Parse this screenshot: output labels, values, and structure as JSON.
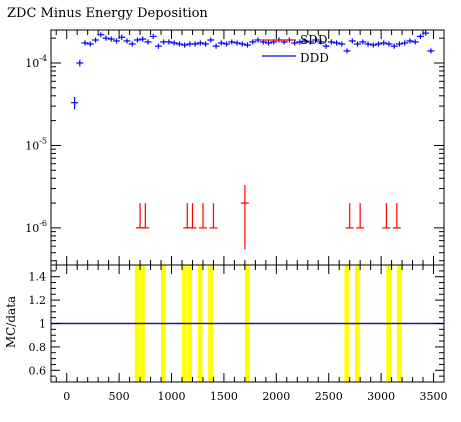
{
  "chart_data": [
    {
      "type": "scatter",
      "title": "ZDC Minus Energy Deposition",
      "yscale": "log",
      "xlim": [
        -150,
        3600
      ],
      "ylim_exp": [
        -6.45,
        -3.6
      ],
      "ytick_labels": [
        "10^-6",
        "10^-5",
        "10^-4"
      ],
      "ytick_values": [
        1e-06,
        1e-05,
        0.0001
      ],
      "legend": {
        "position": "top-right",
        "entries": [
          "SDD",
          "DDD"
        ]
      },
      "series": [
        {
          "name": "SDD",
          "color": "#ff0000",
          "x": [
            700,
            750,
            1150,
            1200,
            1300,
            1400,
            1700,
            2700,
            2800,
            3050,
            3150
          ],
          "y": [
            1e-06,
            1e-06,
            1e-06,
            1e-06,
            1e-06,
            1e-06,
            2e-06,
            1e-06,
            1e-06,
            1e-06,
            1e-06
          ],
          "yerr_hi": [
            2e-06,
            2e-06,
            2e-06,
            2e-06,
            2e-06,
            2e-06,
            3.3e-06,
            2e-06,
            2e-06,
            2e-06,
            2e-06
          ],
          "yerr_lo": [
            1e-06,
            1e-06,
            1e-06,
            1e-06,
            1e-06,
            1e-06,
            5.5e-07,
            1e-06,
            1e-06,
            1e-06,
            1e-06
          ]
        },
        {
          "name": "DDD",
          "color": "#0000ff",
          "x": [
            75,
            125,
            175,
            225,
            275,
            325,
            375,
            425,
            475,
            525,
            575,
            625,
            675,
            725,
            775,
            825,
            875,
            925,
            975,
            1025,
            1075,
            1125,
            1175,
            1225,
            1275,
            1325,
            1375,
            1425,
            1475,
            1525,
            1575,
            1625,
            1675,
            1725,
            1775,
            1825,
            1875,
            1925,
            1975,
            2025,
            2075,
            2125,
            2175,
            2225,
            2275,
            2325,
            2375,
            2425,
            2475,
            2525,
            2575,
            2625,
            2675,
            2725,
            2775,
            2825,
            2875,
            2925,
            2975,
            3025,
            3075,
            3125,
            3175,
            3225,
            3275,
            3325,
            3375,
            3425,
            3475
          ],
          "y": [
            3.3e-05,
            0.0001,
            0.000175,
            0.00017,
            0.00019,
            0.00022,
            0.0002,
            0.000195,
            0.000185,
            0.000205,
            0.000185,
            0.00017,
            0.00019,
            0.000195,
            0.00018,
            0.00021,
            0.00016,
            0.00018,
            0.00018,
            0.000175,
            0.00017,
            0.000165,
            0.00017,
            0.00017,
            0.000175,
            0.00017,
            0.00019,
            0.00016,
            0.000175,
            0.00017,
            0.00018,
            0.000175,
            0.00017,
            0.000165,
            0.00018,
            0.00019,
            0.00018,
            0.000175,
            0.00018,
            0.00019,
            0.00018,
            0.00019,
            0.000175,
            0.00018,
            0.000185,
            0.00018,
            0.00019,
            0.00018,
            0.00016,
            0.00018,
            0.000175,
            0.00017,
            0.00014,
            0.000185,
            0.00017,
            0.00018,
            0.00017,
            0.000165,
            0.00017,
            0.000175,
            0.00017,
            0.00016,
            0.00017,
            0.000175,
            0.000185,
            0.00018,
            0.00021,
            0.00023,
            0.00014
          ],
          "yerr_frac": [
            0.13,
            0.05,
            0.03,
            0.03,
            0.03,
            0.03,
            0.03,
            0.03,
            0.03,
            0.03,
            0.03,
            0.03,
            0.03,
            0.03,
            0.03,
            0.03,
            0.03,
            0.03,
            0.03,
            0.03,
            0.03,
            0.03,
            0.03,
            0.03,
            0.03,
            0.03,
            0.03,
            0.03,
            0.03,
            0.03,
            0.03,
            0.03,
            0.03,
            0.03,
            0.03,
            0.03,
            0.03,
            0.03,
            0.03,
            0.03,
            0.03,
            0.03,
            0.03,
            0.03,
            0.03,
            0.03,
            0.03,
            0.03,
            0.03,
            0.03,
            0.03,
            0.03,
            0.03,
            0.03,
            0.03,
            0.03,
            0.03,
            0.03,
            0.03,
            0.03,
            0.03,
            0.03,
            0.03,
            0.03,
            0.03,
            0.03,
            0.03,
            0.03,
            0.03
          ]
        }
      ]
    },
    {
      "type": "ratio",
      "ylabel": "MC/data",
      "ylim": [
        0.5,
        1.5
      ],
      "yticks": [
        0.6,
        0.8,
        1,
        1.2,
        1.4
      ],
      "xticks": [
        0,
        500,
        1000,
        1500,
        2000,
        2500,
        3000,
        3500
      ],
      "reference": {
        "value": 1,
        "color": "#1a1a8c"
      },
      "bands": {
        "color": "#ffff00",
        "ranges": [
          [
            650,
            700
          ],
          [
            700,
            750
          ],
          [
            900,
            950
          ],
          [
            1100,
            1150
          ],
          [
            1150,
            1200
          ],
          [
            1250,
            1300
          ],
          [
            1350,
            1400
          ],
          [
            1700,
            1750
          ],
          [
            2650,
            2700
          ],
          [
            2750,
            2800
          ],
          [
            3050,
            3100
          ],
          [
            3150,
            3200
          ]
        ]
      }
    }
  ]
}
